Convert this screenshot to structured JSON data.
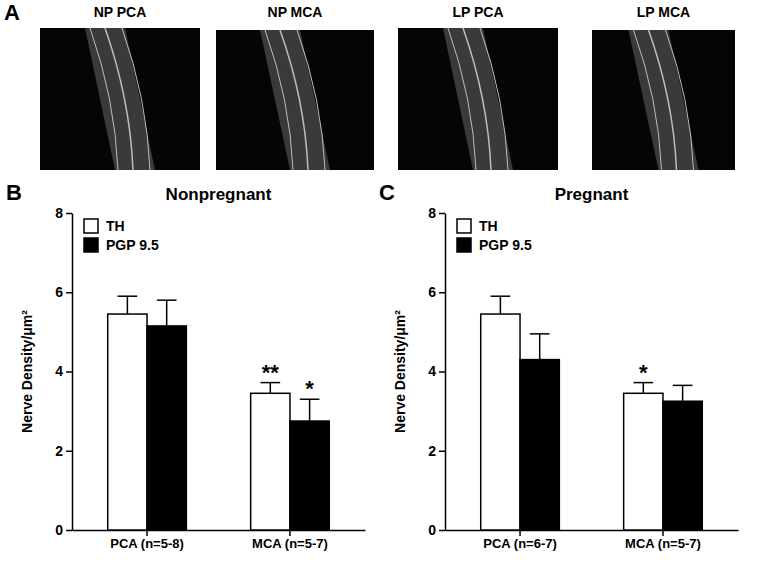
{
  "panel_a": {
    "panel": "A",
    "images": [
      "NP PCA",
      "NP MCA",
      "LP PCA",
      "LP MCA"
    ]
  },
  "chart_data": [
    {
      "type": "bar",
      "panel": "B",
      "title": "Nonpregnant",
      "y_label": "Nerve Density/μm²",
      "categories": [
        "PCA (n=5-8)",
        "MCA (n=5-7)"
      ],
      "series": [
        {
          "name": "TH",
          "color": "#ffffff",
          "values": [
            5.45,
            3.45
          ],
          "errors": [
            0.45,
            0.27
          ],
          "significance": [
            null,
            "**"
          ]
        },
        {
          "name": "PGP 9.5",
          "color": "#000000",
          "values": [
            5.15,
            2.75
          ],
          "errors": [
            0.65,
            0.55
          ],
          "significance": [
            null,
            "*"
          ]
        }
      ],
      "ylim": [
        0,
        8
      ],
      "yticks": [
        0,
        2,
        4,
        6,
        8
      ],
      "legend": "upper left"
    },
    {
      "type": "bar",
      "panel": "C",
      "title": "Pregnant",
      "y_label": "Nerve Density/μm²",
      "categories": [
        "PCA (n=6-7)",
        "MCA (n=5-7)"
      ],
      "series": [
        {
          "name": "TH",
          "color": "#ffffff",
          "values": [
            5.45,
            3.45
          ],
          "errors": [
            0.45,
            0.27
          ],
          "significance": [
            null,
            "*"
          ]
        },
        {
          "name": "PGP 9.5",
          "color": "#000000",
          "values": [
            4.3,
            3.25
          ],
          "errors": [
            0.65,
            0.4
          ],
          "significance": [
            null,
            null
          ]
        }
      ],
      "ylim": [
        0,
        8
      ],
      "yticks": [
        0,
        2,
        4,
        6,
        8
      ],
      "legend": "upper left"
    }
  ]
}
